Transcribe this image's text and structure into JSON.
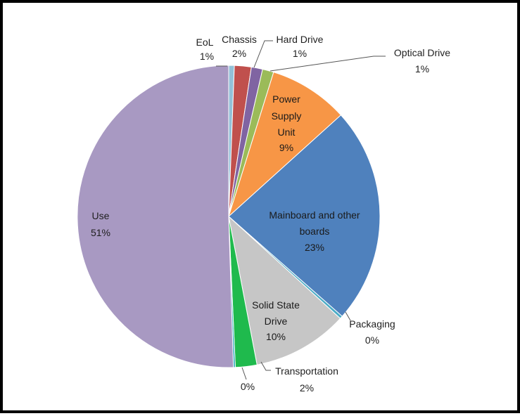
{
  "chart_data": {
    "type": "pie",
    "start_angle_deg": -90,
    "direction": "clockwise",
    "slices": [
      {
        "name": "EoL",
        "value": 0.6,
        "label_text": "1%",
        "color": "#93c1d8"
      },
      {
        "name": "Chassis",
        "value": 1.8,
        "label_text": "2%",
        "color": "#c0504d"
      },
      {
        "name": "Hard Drive",
        "value": 1.2,
        "label_text": "1%",
        "color": "#8064a2"
      },
      {
        "name": "Optical Drive",
        "value": 1.2,
        "label_text": "1%",
        "color": "#9bbb59"
      },
      {
        "name": "Power Supply Unit",
        "value": 8.5,
        "label_text": "9%",
        "color": "#f79646"
      },
      {
        "name": "Mainboard and other boards",
        "value": 23.2,
        "label_text": "23%",
        "color": "#4f81bd"
      },
      {
        "name": "Packaging",
        "value": 0.3,
        "label_text": "0%",
        "color": "#4bacc6"
      },
      {
        "name": "Solid State Drive",
        "value": 10.2,
        "label_text": "10%",
        "color": "#c6c6c6"
      },
      {
        "name": "Transportation",
        "value": 2.3,
        "label_text": "2%",
        "color": "#1fba4d"
      },
      {
        "name": "",
        "value": 0.2,
        "label_text": "0%",
        "color": "#26a8b8"
      },
      {
        "name": "Use",
        "value": 50.5,
        "label_text": "51%",
        "color": "#a899c2"
      }
    ],
    "legend": "none"
  }
}
